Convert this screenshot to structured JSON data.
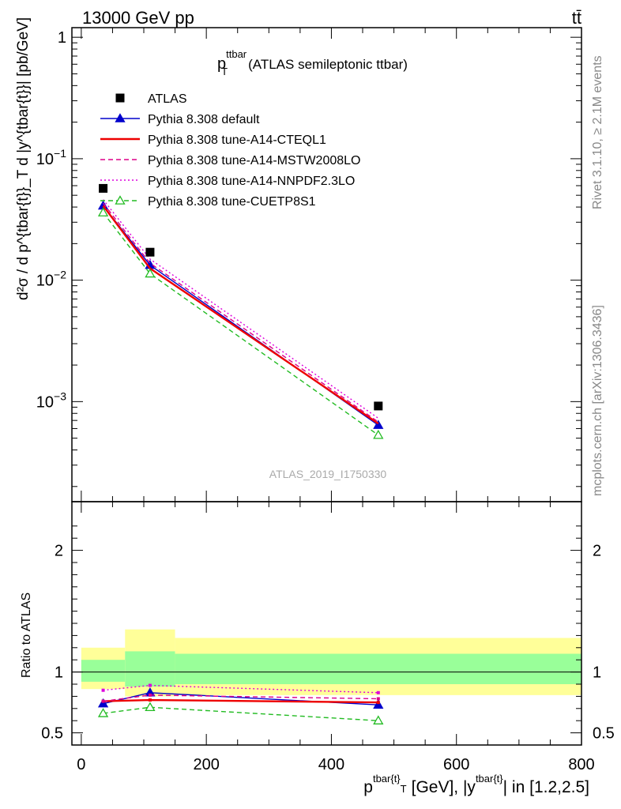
{
  "header": {
    "process": "13000 GeV pp",
    "channel": "tt̄"
  },
  "side_labels": {
    "rivet": "Rivet 3.1.10, ≥ 2.1M events",
    "source": "mcplots.cern.ch [arXiv:1306.3436]"
  },
  "chart_data": [
    {
      "panel": "main",
      "type": "line",
      "title": "p_T^ttbar (ATLAS semileptonic ttbar)",
      "title_main": "p",
      "title_sup": "ttbar",
      "title_sub": "T",
      "title_rest": "(ATLAS semileptonic ttbar)",
      "analysis_label": "ATLAS_2019_I1750330",
      "ylabel": "d²σ / d p^{tbar{t}}_T d |y^{tbar{t}}| [pb/GeV]",
      "yscale": "log",
      "ylim": [
        0.00015,
        1.2
      ],
      "xlim": [
        -15,
        800
      ],
      "ytick_labels": [
        {
          "value": 1,
          "base": "1",
          "exp": ""
        },
        {
          "value": 0.1,
          "base": "10",
          "exp": "−1"
        },
        {
          "value": 0.01,
          "base": "10",
          "exp": "−2"
        },
        {
          "value": 0.001,
          "base": "10",
          "exp": "−3"
        }
      ],
      "legend_position": "top-left",
      "x": [
        35,
        110,
        475
      ],
      "data": {
        "name": "ATLAS",
        "values": [
          0.057,
          0.017,
          0.00092
        ]
      },
      "series": [
        {
          "name": "Pythia 8.308 default",
          "color": "#0000cc",
          "style": "solid",
          "marker": "filled-triangle",
          "values": [
            0.041,
            0.0133,
            0.00064
          ]
        },
        {
          "name": "Pythia 8.308 tune-A14-CTEQL1",
          "color": "#ee0000",
          "style": "solid",
          "marker": "none",
          "values": [
            0.041,
            0.0125,
            0.00066
          ]
        },
        {
          "name": "Pythia 8.308 tune-A14-MSTW2008LO",
          "color": "#dd0088",
          "style": "dashed",
          "marker": "none",
          "values": [
            0.043,
            0.0138,
            0.00068
          ]
        },
        {
          "name": "Pythia 8.308 tune-A14-NNPDF2.3LO",
          "color": "#dd00dd",
          "style": "dotted",
          "marker": "none",
          "values": [
            0.046,
            0.0149,
            0.00073
          ]
        },
        {
          "name": "Pythia 8.308 tune-CUETP8S1",
          "color": "#22bb22",
          "style": "dashed",
          "marker": "open-triangle",
          "values": [
            0.036,
            0.0113,
            0.00053
          ]
        }
      ]
    },
    {
      "panel": "ratio",
      "type": "line",
      "ylabel": "Ratio to ATLAS",
      "xlabel": "p^{tbar{t}}_T [GeV], |y^{tbar{t}}| in [1.2,2.5]",
      "xlabel_p": "p",
      "xlabel_sup1": "tbar{t}",
      "xlabel_sub": "T",
      "xlabel_mid": "[GeV], |y",
      "xlabel_sup2": "tbar{t}",
      "xlabel_end": "| in [1.2,2.5]",
      "ylim": [
        0.4,
        2.4
      ],
      "xlim": [
        -15,
        800
      ],
      "yticks": [
        0.5,
        1,
        2
      ],
      "ytick_labels": [
        "0.5",
        "1",
        "2"
      ],
      "xticks": [
        0,
        200,
        400,
        600,
        800
      ],
      "xtick_labels": [
        "0",
        "200",
        "400",
        "600",
        "800"
      ],
      "bands": [
        {
          "xmin": 0,
          "xmax": 70,
          "yellow": [
            0.86,
            1.2
          ],
          "green": [
            0.92,
            1.1
          ]
        },
        {
          "xmin": 70,
          "xmax": 150,
          "yellow": [
            0.8,
            1.35
          ],
          "green": [
            0.88,
            1.17
          ]
        },
        {
          "xmin": 150,
          "xmax": 800,
          "yellow": [
            0.81,
            1.28
          ],
          "green": [
            0.9,
            1.15
          ]
        }
      ],
      "x": [
        35,
        110,
        475
      ],
      "series": [
        {
          "name": "Pythia 8.308 default",
          "color": "#0000cc",
          "style": "solid",
          "marker": "filled-triangle",
          "values": [
            0.74,
            0.83,
            0.73
          ]
        },
        {
          "name": "Pythia 8.308 tune-A14-CTEQL1",
          "color": "#ee0000",
          "style": "solid",
          "marker": "none",
          "values": [
            0.76,
            0.77,
            0.75
          ]
        },
        {
          "name": "Pythia 8.308 tune-A14-MSTW2008LO",
          "color": "#dd0088",
          "style": "dashed",
          "marker": "none",
          "values": [
            0.76,
            0.81,
            0.78
          ]
        },
        {
          "name": "Pythia 8.308 tune-A14-NNPDF2.3LO",
          "color": "#dd00dd",
          "style": "dotted",
          "marker": "none",
          "values": [
            0.85,
            0.89,
            0.83
          ]
        },
        {
          "name": "Pythia 8.308 tune-CUETP8S1",
          "color": "#22bb22",
          "style": "dashed",
          "marker": "open-triangle",
          "values": [
            0.66,
            0.71,
            0.6
          ]
        }
      ]
    }
  ]
}
